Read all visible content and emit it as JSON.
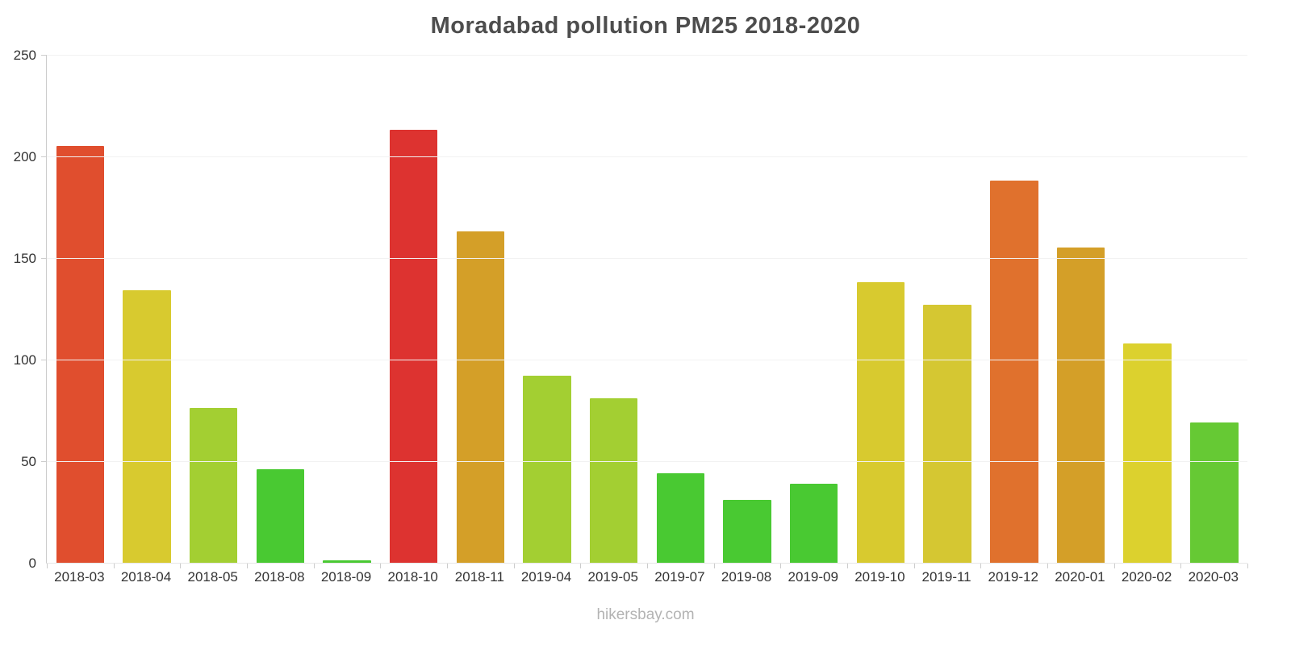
{
  "chart": {
    "title": "Moradabad pollution PM25 2018-2020"
  },
  "footer": {
    "text": "hikersbay.com"
  },
  "chart_data": {
    "type": "bar",
    "title": "Moradabad pollution PM25 2018-2020",
    "categories": [
      "2018-03",
      "2018-04",
      "2018-05",
      "2018-08",
      "2018-09",
      "2018-10",
      "2018-11",
      "2019-04",
      "2019-05",
      "2019-07",
      "2019-08",
      "2019-09",
      "2019-10",
      "2019-11",
      "2019-12",
      "2020-01",
      "2020-02",
      "2020-03"
    ],
    "values": [
      205,
      134,
      76,
      46,
      1,
      213,
      163,
      92,
      81,
      44,
      31,
      39,
      138,
      127,
      188,
      155,
      108,
      69
    ],
    "bar_colors": [
      "#e04e2e",
      "#d8ca2f",
      "#a3cf32",
      "#49c932",
      "#49c932",
      "#dd3330",
      "#d49f28",
      "#a3cf32",
      "#a3cf32",
      "#49c932",
      "#49c932",
      "#49c932",
      "#d8ca2f",
      "#d5c732",
      "#e0712d",
      "#d49f28",
      "#dcd12e",
      "#66c934"
    ],
    "xlabel": "",
    "ylabel": "",
    "ylim": [
      0,
      250
    ],
    "yticks": [
      0,
      50,
      100,
      150,
      200,
      250
    ],
    "legend": "none",
    "grid": "faint-horizontal"
  }
}
